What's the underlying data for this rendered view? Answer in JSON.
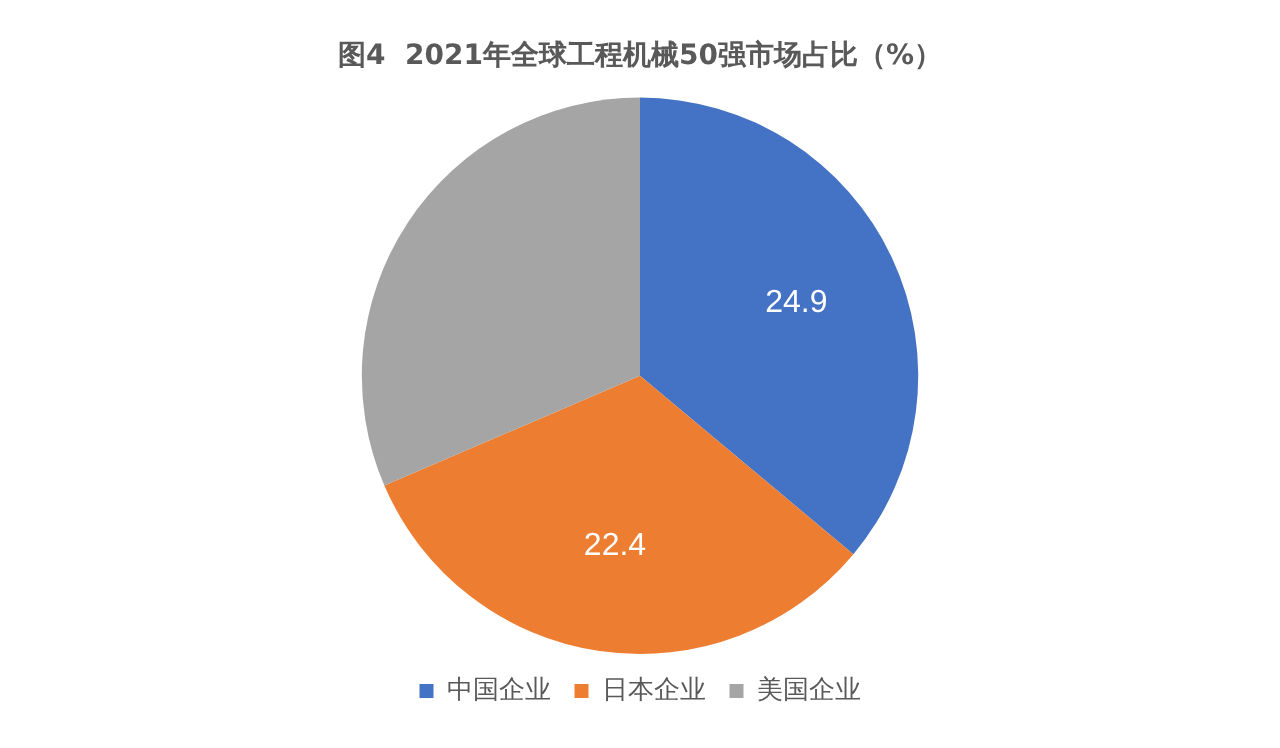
{
  "chart_data": {
    "type": "pie",
    "title": "图4  2021年全球工程机械50强市场占比（%）",
    "categories": [
      "中国企业",
      "日本企业",
      "美国企业"
    ],
    "values": [
      24.9,
      22.4,
      21.7
    ],
    "value_labels": [
      "24.9",
      "22.4",
      null
    ],
    "colors": [
      "#4472c4",
      "#ed7d31",
      "#a5a5a5"
    ],
    "legend": "bottom"
  }
}
